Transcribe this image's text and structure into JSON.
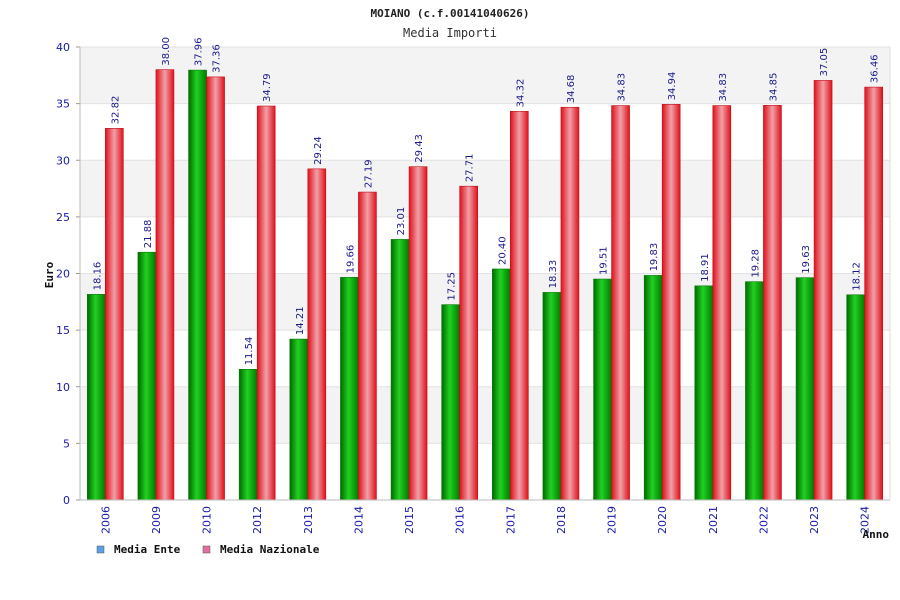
{
  "chart_data": {
    "type": "bar",
    "title": "MOIANO (c.f.00141040626)",
    "subtitle": "Media Importi",
    "xlabel": "Anno",
    "ylabel": "Euro",
    "ylim": [
      0,
      40
    ],
    "yticks": [
      "0",
      "5",
      "10",
      "15",
      "20",
      "25",
      "30",
      "35",
      "40"
    ],
    "categories": [
      "2006",
      "2009",
      "2010",
      "2012",
      "2013",
      "2014",
      "2015",
      "2016",
      "2017",
      "2018",
      "2019",
      "2020",
      "2021",
      "2022",
      "2023",
      "2024"
    ],
    "series": [
      {
        "name": "Media Ente",
        "color": "#00b000",
        "values": [
          18.16,
          21.88,
          37.96,
          11.54,
          14.21,
          19.66,
          23.01,
          17.25,
          20.4,
          18.33,
          19.51,
          19.83,
          18.91,
          19.28,
          19.63,
          18.12
        ],
        "labels": [
          "18.16",
          "21.88",
          "37.96",
          "11.54",
          "14.21",
          "19.66",
          "23.01",
          "17.25",
          "20.40",
          "18.33",
          "19.51",
          "19.83",
          "18.91",
          "19.28",
          "19.63",
          "18.12"
        ]
      },
      {
        "name": "Media Nazionale",
        "color": "#e8202a",
        "values": [
          32.82,
          38.0,
          37.36,
          34.79,
          29.24,
          27.19,
          29.43,
          27.71,
          34.32,
          34.68,
          34.83,
          34.94,
          34.83,
          34.85,
          37.05,
          36.46
        ],
        "labels": [
          "32.82",
          "38.00",
          "37.36",
          "34.79",
          "29.24",
          "27.19",
          "29.43",
          "27.71",
          "34.32",
          "34.68",
          "34.83",
          "34.94",
          "34.83",
          "34.85",
          "37.05",
          "36.46"
        ]
      }
    ],
    "legend": {
      "placement": "bottom-left",
      "items": [
        {
          "label": "Media Ente",
          "color": "#5aa0e6"
        },
        {
          "label": "Media Nazionale",
          "color": "#e070a0"
        }
      ]
    },
    "grid": true,
    "band_colors": [
      "#f3f3f3",
      "#ffffff"
    ]
  }
}
